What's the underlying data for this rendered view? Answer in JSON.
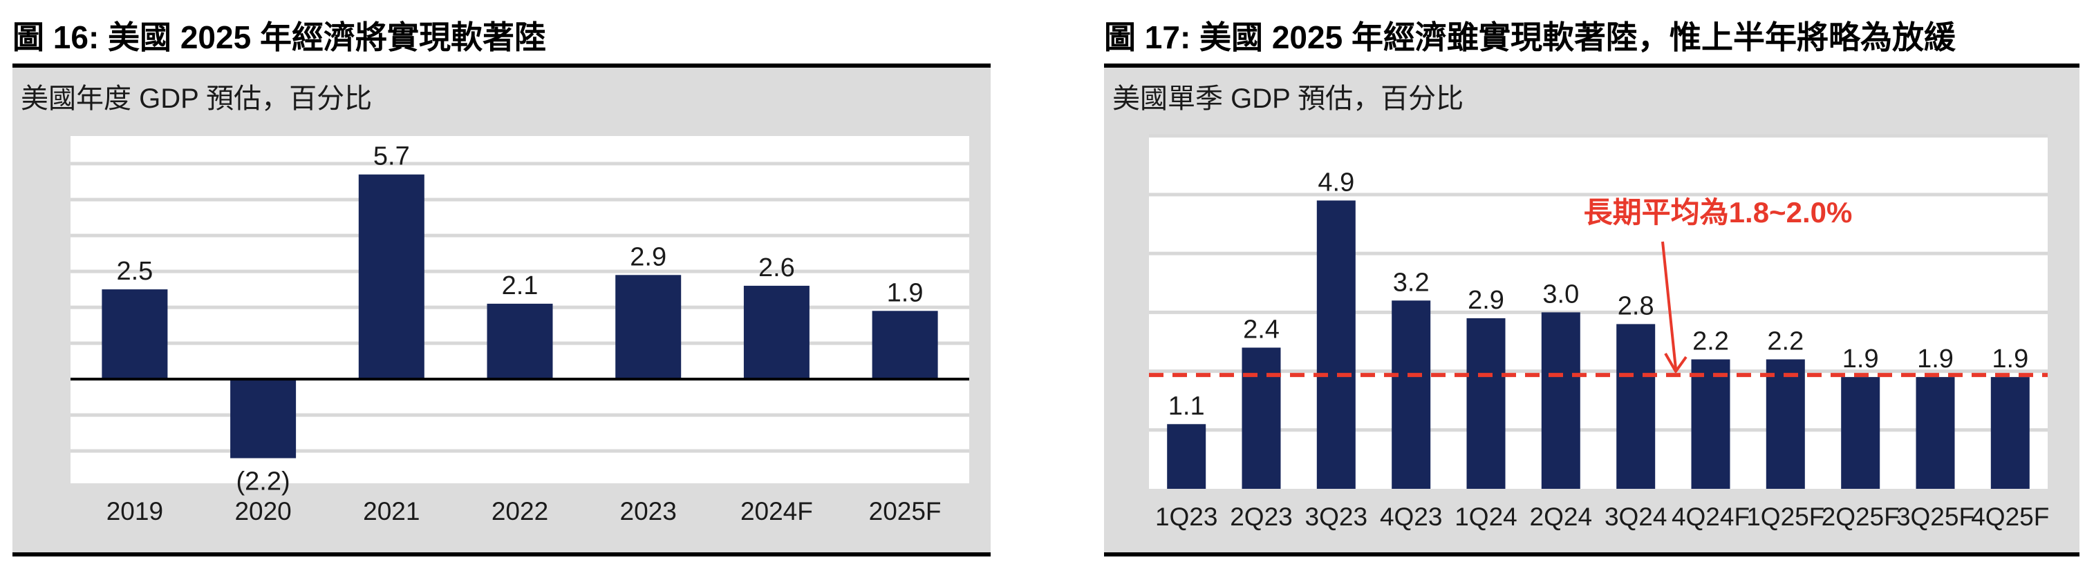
{
  "style": {
    "panel_bg": "#dcdcdc",
    "plot_bg": "#ffffff",
    "grid_color": "#d8d8d8",
    "bar_color": "#17265a",
    "text_color": "#1a1a1a",
    "accent_red": "#e8392b"
  },
  "chart_data": [
    {
      "type": "bar",
      "title": "圖 16: 美國 2025 年經濟將實現軟著陸",
      "subtitle": "美國年度 GDP 預估，百分比",
      "categories": [
        "2019",
        "2020",
        "2021",
        "2022",
        "2023",
        "2024F",
        "2025F"
      ],
      "values": [
        2.5,
        -2.2,
        5.7,
        2.1,
        2.9,
        2.6,
        1.9
      ],
      "value_labels": [
        "2.5",
        "(2.2)",
        "5.7",
        "2.1",
        "2.9",
        "2.6",
        "1.9"
      ],
      "ylim": [
        -2.9,
        6.77
      ],
      "grid": true,
      "grid_step": 1,
      "zero_line": true,
      "bar_color": "#17265a",
      "xlabel": "",
      "ylabel": "",
      "legend": null
    },
    {
      "type": "bar",
      "title": "圖 17: 美國 2025 年經濟雖實現軟著陸，惟上半年將略為放緩",
      "subtitle": "美國單季 GDP 預估，百分比",
      "categories": [
        "1Q23",
        "2Q23",
        "3Q23",
        "4Q23",
        "1Q24",
        "2Q24",
        "3Q24",
        "4Q24F",
        "1Q25F",
        "2Q25F",
        "3Q25F",
        "4Q25F"
      ],
      "values": [
        1.1,
        2.4,
        4.9,
        3.2,
        2.9,
        3.0,
        2.8,
        2.2,
        2.2,
        1.9,
        1.9,
        1.9
      ],
      "value_labels": [
        "1.1",
        "2.4",
        "4.9",
        "3.2",
        "2.9",
        "3.0",
        "2.8",
        "2.2",
        "2.2",
        "1.9",
        "1.9",
        "1.9"
      ],
      "ylim": [
        0,
        6.02
      ],
      "grid": true,
      "grid_step": 1,
      "zero_line": false,
      "bar_color": "#17265a",
      "ref_line": {
        "value": 1.9,
        "label": "長期平均為1.8~2.0%",
        "color": "#e8392b",
        "style": "dashed"
      },
      "xlabel": "",
      "ylabel": "",
      "legend": null
    }
  ]
}
